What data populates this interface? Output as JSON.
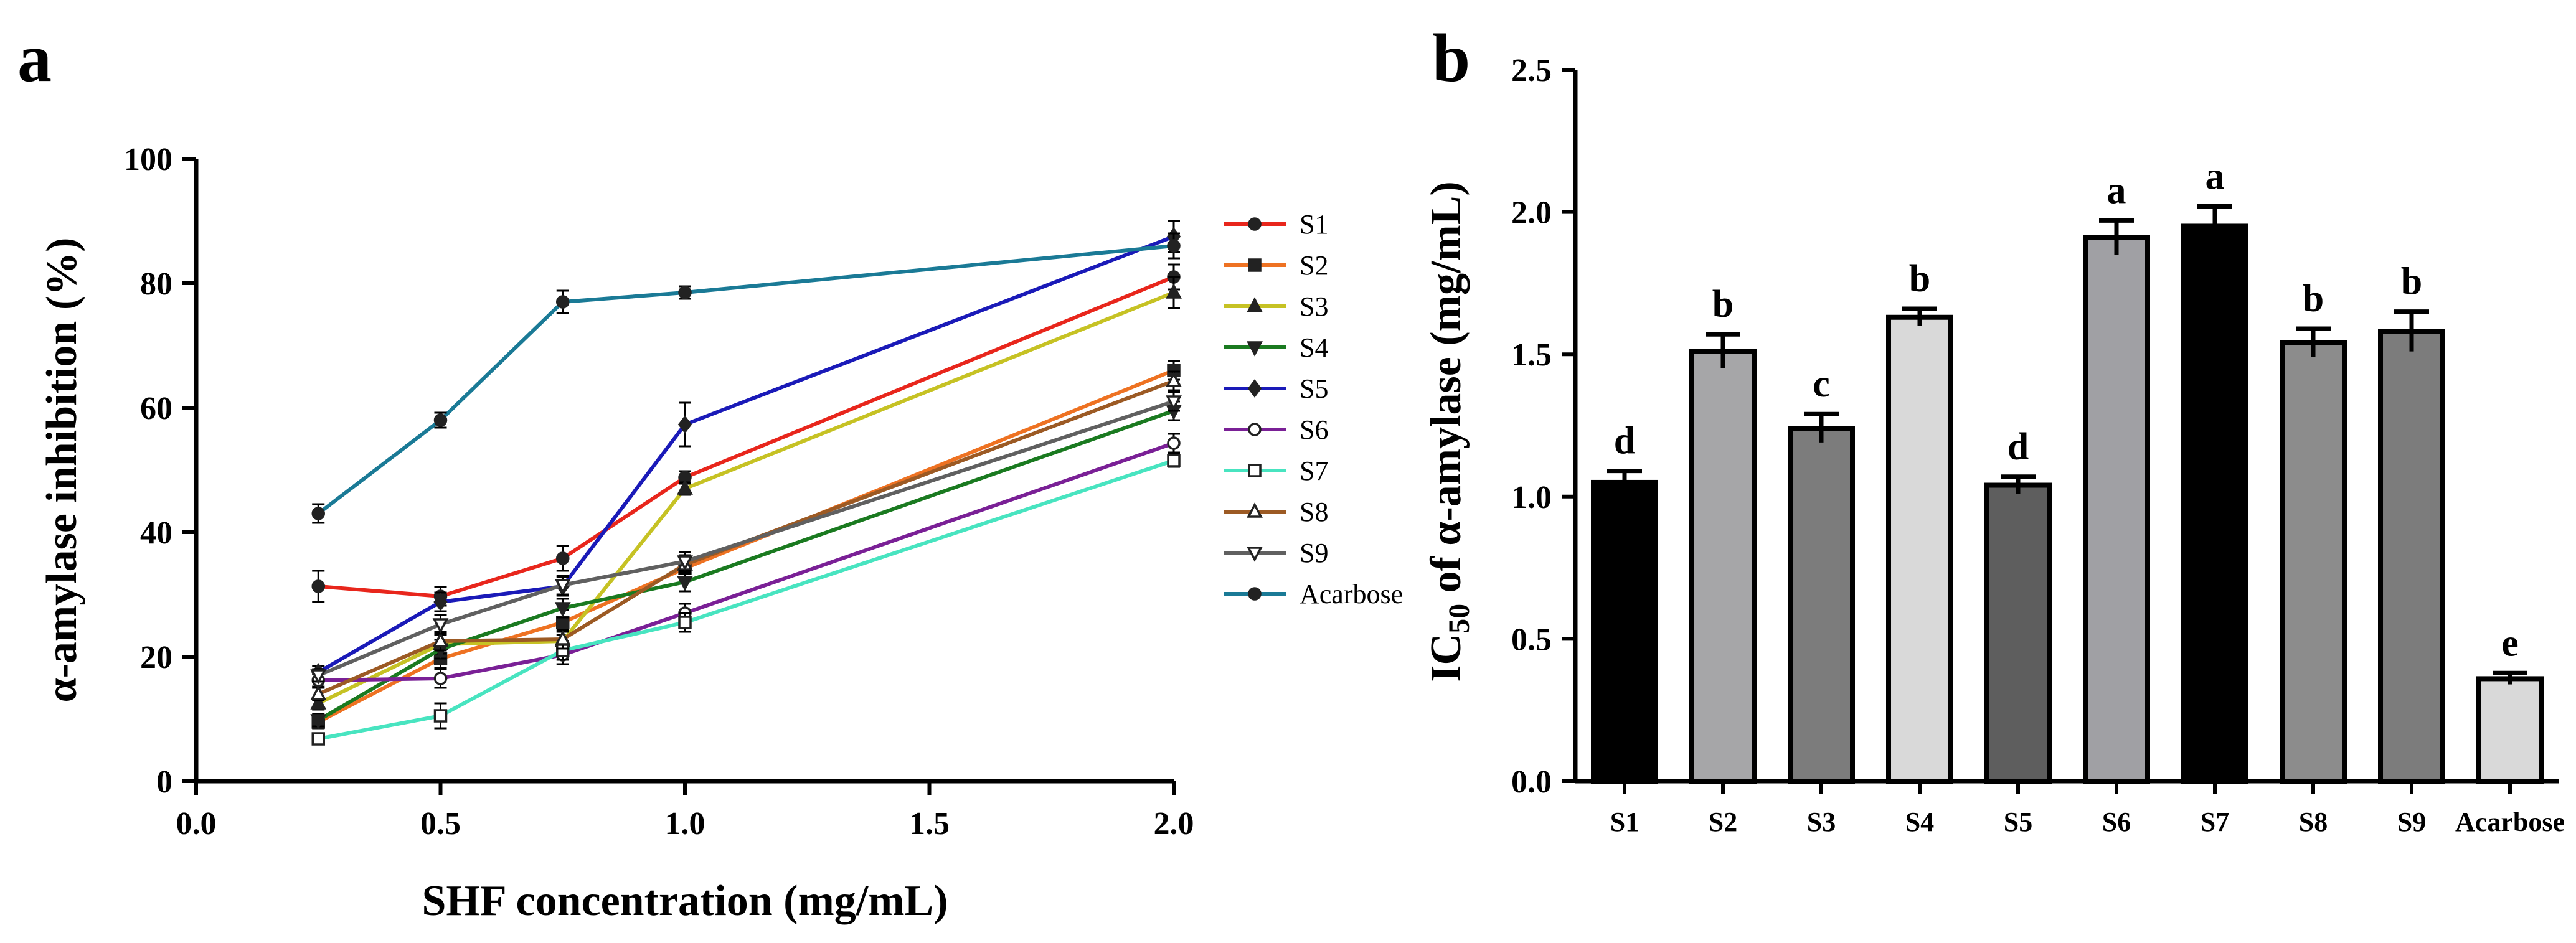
{
  "panels": {
    "a_label": "a",
    "b_label": "b"
  },
  "colors": {
    "S1": "#e8261c",
    "S2": "#ee7222",
    "S3": "#c6c224",
    "S4": "#1a7a20",
    "S5": "#1a1ab8",
    "S6": "#7a2096",
    "S7": "#48e4c0",
    "S8": "#9c5a24",
    "S9": "#606060",
    "Acarbose": "#1a7a96"
  },
  "chart_data": [
    {
      "type": "line",
      "panel": "a",
      "title": "",
      "xlabel": "SHF concentration (mg/mL)",
      "ylabel": "α-amylase inhibition (%)",
      "xlim": [
        0,
        2
      ],
      "ylim": [
        0,
        100
      ],
      "xticks": [
        "0.0",
        "0.5",
        "1.0",
        "1.5",
        "2.0"
      ],
      "yticks": [
        "0",
        "20",
        "40",
        "60",
        "80",
        "100"
      ],
      "legend_position": "right",
      "x": [
        0.25,
        0.5,
        0.75,
        1.0,
        2.0
      ],
      "series": [
        {
          "name": "S1",
          "marker": "circle",
          "values": [
            31.3,
            29.7,
            35.8,
            48.8,
            81.0
          ],
          "errors": [
            2.5,
            1.5,
            2.0,
            1.0,
            2.0
          ]
        },
        {
          "name": "S2",
          "marker": "square",
          "values": [
            9.5,
            19.7,
            25.5,
            34.2,
            66.0
          ],
          "errors": [
            1.0,
            1.5,
            2.0,
            1.5,
            1.5
          ]
        },
        {
          "name": "S3",
          "marker": "triangle-up",
          "values": [
            12.5,
            22.0,
            22.5,
            47.0,
            78.5
          ],
          "errors": [
            1.0,
            1.5,
            1.5,
            1.0,
            2.5
          ]
        },
        {
          "name": "S4",
          "marker": "triangle-down",
          "values": [
            9.8,
            21.2,
            27.8,
            32.0,
            59.5
          ],
          "errors": [
            1.0,
            1.5,
            1.5,
            1.5,
            1.5
          ]
        },
        {
          "name": "S5",
          "marker": "diamond",
          "values": [
            17.5,
            28.8,
            31.3,
            57.3,
            87.5
          ],
          "errors": [
            1.0,
            1.5,
            1.5,
            3.5,
            2.5
          ]
        },
        {
          "name": "S6",
          "marker": "circle-open",
          "values": [
            16.2,
            16.5,
            20.3,
            27.0,
            54.3
          ],
          "errors": [
            1.0,
            1.5,
            1.5,
            1.5,
            1.5
          ]
        },
        {
          "name": "S7",
          "marker": "square-open",
          "values": [
            6.8,
            10.5,
            21.0,
            25.5,
            51.5
          ],
          "errors": [
            0.8,
            2.0,
            1.5,
            1.5,
            1.0
          ]
        },
        {
          "name": "S8",
          "marker": "triangle-up-open",
          "values": [
            14.0,
            22.5,
            22.8,
            34.8,
            64.3
          ],
          "errors": [
            1.0,
            1.5,
            1.5,
            1.5,
            1.5
          ]
        },
        {
          "name": "S9",
          "marker": "triangle-down-open",
          "values": [
            17.0,
            25.2,
            31.5,
            35.3,
            61.0
          ],
          "errors": [
            1.0,
            1.5,
            1.5,
            1.5,
            1.5
          ]
        },
        {
          "name": "Acarbose",
          "marker": "circle",
          "values": [
            43.0,
            58.0,
            77.0,
            78.5,
            86.0
          ],
          "errors": [
            1.5,
            1.2,
            1.8,
            1.0,
            2.0
          ]
        }
      ]
    },
    {
      "type": "bar",
      "panel": "b",
      "title": "",
      "xlabel": "",
      "ylabel_parts": [
        "IC",
        "50",
        " of α-amylase (mg/mL)"
      ],
      "ylim": [
        0,
        2.5
      ],
      "yticks": [
        "0.0",
        "0.5",
        "1.0",
        "1.5",
        "2.0",
        "2.5"
      ],
      "categories": [
        "S1",
        "S2",
        "S3",
        "S4",
        "S5",
        "S6",
        "S7",
        "S8",
        "S9",
        "Acarbose"
      ],
      "values": [
        1.05,
        1.51,
        1.24,
        1.63,
        1.04,
        1.91,
        1.95,
        1.54,
        1.58,
        0.36
      ],
      "errors": [
        0.04,
        0.06,
        0.05,
        0.03,
        0.03,
        0.06,
        0.07,
        0.05,
        0.07,
        0.02
      ],
      "significance": [
        "d",
        "b",
        "c",
        "b",
        "d",
        "a",
        "a",
        "b",
        "b",
        "e"
      ],
      "bar_fills": [
        "#000000",
        "#a6a6a8",
        "#7c7c7c",
        "#d9d9d9",
        "#5e5e5e",
        "#a0a0a4",
        "#000000",
        "#8c8c8c",
        "#7c7c7c",
        "#d9d9d9"
      ]
    }
  ]
}
